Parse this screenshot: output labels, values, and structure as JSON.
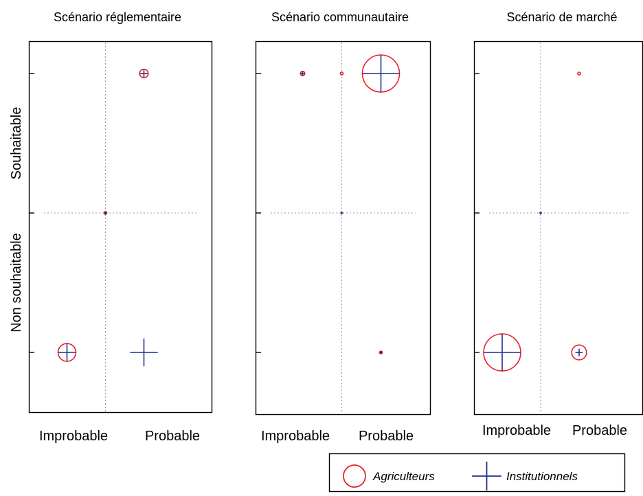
{
  "colors": {
    "agriculteurs": "#e8212c",
    "institutionnels": "#1f2f8f",
    "grid": "#9a9a9a"
  },
  "chart_data": [
    {
      "type": "scatter",
      "title": "Scénario réglementaire",
      "x_categories": [
        "Improbable",
        "Probable"
      ],
      "y_categories": [
        "Non souhaitable",
        "Souhaitable"
      ],
      "series": [
        {
          "name": "Agriculteurs",
          "marker": "circle",
          "points": [
            {
              "x": 1,
              "y": 1,
              "size": 0.23
            },
            {
              "x": 0,
              "y": 0,
              "size": 0.05
            },
            {
              "x": -1,
              "y": -1,
              "size": 0.48
            }
          ]
        },
        {
          "name": "Institutionnels",
          "marker": "plus",
          "points": [
            {
              "x": 1,
              "y": 1,
              "size": 0.23
            },
            {
              "x": 0,
              "y": 0,
              "size": 0.05
            },
            {
              "x": -1,
              "y": -1,
              "size": 0.48
            },
            {
              "x": 1,
              "y": -1,
              "size": 0.75
            }
          ]
        }
      ]
    },
    {
      "type": "scatter",
      "title": "Scénario communautaire",
      "x_categories": [
        "Improbable",
        "Probable"
      ],
      "y_categories": [
        "Non souhaitable",
        "Souhaitable"
      ],
      "series": [
        {
          "name": "Agriculteurs",
          "marker": "circle",
          "points": [
            {
              "x": -1,
              "y": 1,
              "size": 0.12
            },
            {
              "x": 0,
              "y": 1,
              "size": 0.07
            },
            {
              "x": 1,
              "y": 1,
              "size": 1.0
            },
            {
              "x": 1,
              "y": -1,
              "size": 0.07
            }
          ]
        },
        {
          "name": "Institutionnels",
          "marker": "plus",
          "points": [
            {
              "x": -1,
              "y": 1,
              "size": 0.12
            },
            {
              "x": 1,
              "y": 1,
              "size": 1.0
            },
            {
              "x": 0,
              "y": 0,
              "size": 0.05
            },
            {
              "x": 1,
              "y": -1,
              "size": 0.07
            }
          ]
        }
      ]
    },
    {
      "type": "scatter",
      "title": "Scénario de marché",
      "x_categories": [
        "Improbable",
        "Probable"
      ],
      "y_categories": [
        "Non souhaitable",
        "Souhaitable"
      ],
      "series": [
        {
          "name": "Agriculteurs",
          "marker": "circle",
          "points": [
            {
              "x": 1,
              "y": 1,
              "size": 0.07
            },
            {
              "x": -1,
              "y": -1,
              "size": 1.0
            },
            {
              "x": 1,
              "y": -1,
              "size": 0.4
            }
          ]
        },
        {
          "name": "Institutionnels",
          "marker": "plus",
          "points": [
            {
              "x": -1,
              "y": -1,
              "size": 1.0
            },
            {
              "x": 1,
              "y": -1,
              "size": 0.2
            },
            {
              "x": 0,
              "y": 0,
              "size": 0.05
            }
          ]
        }
      ]
    }
  ],
  "legend": {
    "items": [
      {
        "label": "Agriculteurs",
        "marker": "circle"
      },
      {
        "label": "Institutionnels",
        "marker": "plus"
      }
    ],
    "placement": "bottom-right"
  }
}
